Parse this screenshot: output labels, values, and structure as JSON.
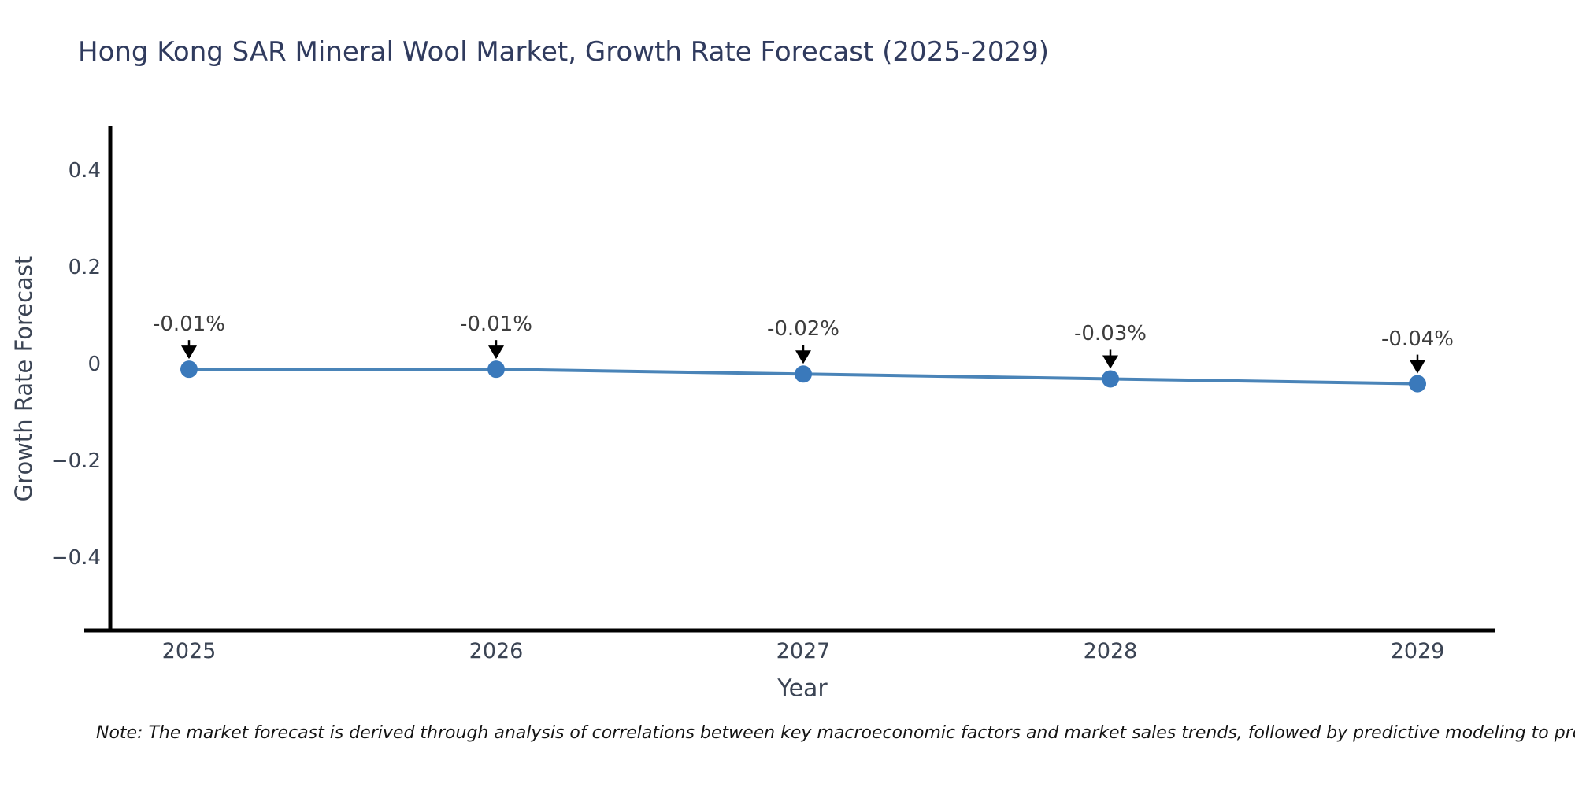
{
  "title": "Hong Kong SAR Mineral Wool Market, Growth Rate Forecast (2025-2029)",
  "note": "Note: The market forecast is derived through analysis of correlations between key macroeconomic factors and market sales trends, followed by predictive modeling to project future sa",
  "chart_data": {
    "type": "line",
    "title": "Hong Kong SAR Mineral Wool Market, Growth Rate Forecast (2025-2029)",
    "categories": [
      "2025",
      "2026",
      "2027",
      "2028",
      "2029"
    ],
    "series": [
      {
        "name": "Growth Rate Forecast",
        "values": [
          -0.01,
          -0.01,
          -0.02,
          -0.03,
          -0.04
        ]
      }
    ],
    "point_labels": [
      "-0.01%",
      "-0.01%",
      "-0.02%",
      "-0.03%",
      "-0.04%"
    ],
    "xlabel": "Year",
    "ylabel": "Growth Rate Forecast",
    "yticks": {
      "values": [
        0.4,
        0.2,
        0,
        -0.2,
        -0.4
      ],
      "labels": [
        "0.4",
        "0.2",
        "0",
        "−0.2",
        "−0.4"
      ]
    },
    "ylim": [
      -0.52,
      0.49
    ],
    "grid": false,
    "legend_position": "none",
    "colors": {
      "line": "#4a84b8",
      "marker": "#3a79bb",
      "annotation_arrow": "#000000",
      "axis": "#000000"
    }
  }
}
